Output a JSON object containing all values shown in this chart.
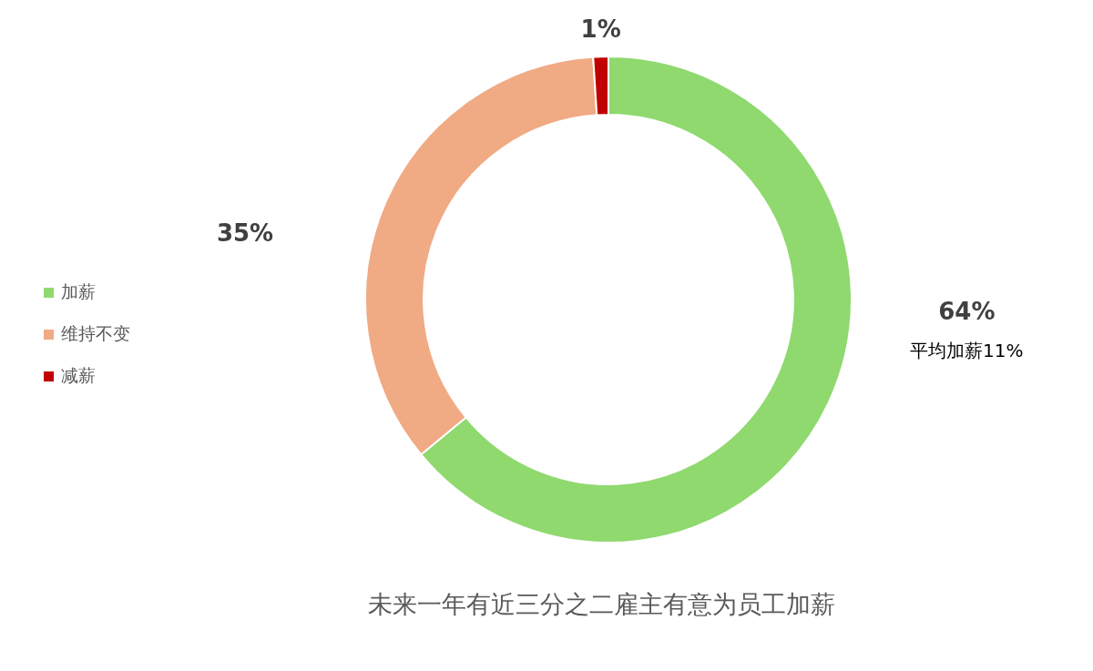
{
  "chart_data": {
    "type": "donut",
    "title": "未来一年有近三分之二雇主有意为员工加薪",
    "categories": [
      "加薪",
      "维持不变",
      "减薪"
    ],
    "values": [
      64,
      35,
      1
    ],
    "colors": [
      "#8fd96f",
      "#f0aa84",
      "#c00000"
    ],
    "value_labels": [
      "64%",
      "35%",
      "1%"
    ],
    "annotations": [
      {
        "text": "平均加薪11%",
        "x": "加薪"
      }
    ],
    "legend": "left"
  }
}
